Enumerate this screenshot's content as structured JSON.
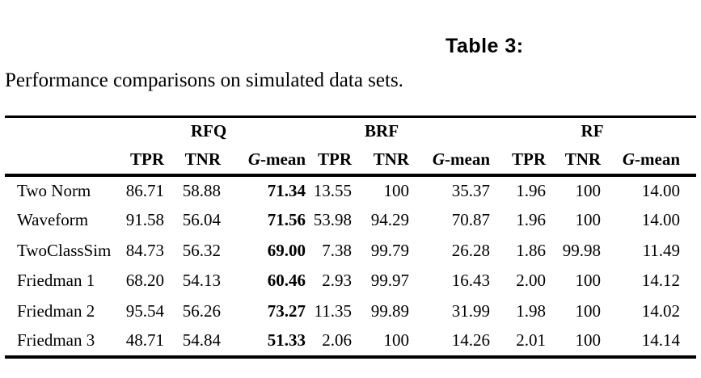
{
  "title": "Table 3:",
  "caption": "Performance comparisons on simulated data sets.",
  "table": {
    "groups": [
      {
        "label": "RFQ"
      },
      {
        "label": "BRF"
      },
      {
        "label": "RF"
      }
    ],
    "metric_labels": {
      "tpr": "TPR",
      "tnr": "TNR",
      "gmean_italic": "G",
      "gmean_rest": "-mean"
    },
    "bold_value_columns": [
      2
    ],
    "rows": [
      {
        "name": "Two Norm",
        "values": [
          "86.71",
          "58.88",
          "71.34",
          "13.55",
          "100",
          "35.37",
          "1.96",
          "100",
          "14.00"
        ]
      },
      {
        "name": "Waveform",
        "values": [
          "91.58",
          "56.04",
          "71.56",
          "53.98",
          "94.29",
          "70.87",
          "1.96",
          "100",
          "14.00"
        ]
      },
      {
        "name": "TwoClassSim",
        "values": [
          "84.73",
          "56.32",
          "69.00",
          "7.38",
          "99.79",
          "26.28",
          "1.86",
          "99.98",
          "11.49"
        ]
      },
      {
        "name": "Friedman 1",
        "values": [
          "68.20",
          "54.13",
          "60.46",
          "2.93",
          "99.97",
          "16.43",
          "2.00",
          "100",
          "14.12"
        ]
      },
      {
        "name": "Friedman 2",
        "values": [
          "95.54",
          "56.26",
          "73.27",
          "11.35",
          "99.89",
          "31.99",
          "1.98",
          "100",
          "14.02"
        ]
      },
      {
        "name": "Friedman 3",
        "values": [
          "48.71",
          "54.84",
          "51.33",
          "2.06",
          "100",
          "14.26",
          "2.01",
          "100",
          "14.14"
        ]
      }
    ],
    "colors": {
      "text": "#000000",
      "background": "#ffffff",
      "rule": "#000000"
    }
  }
}
